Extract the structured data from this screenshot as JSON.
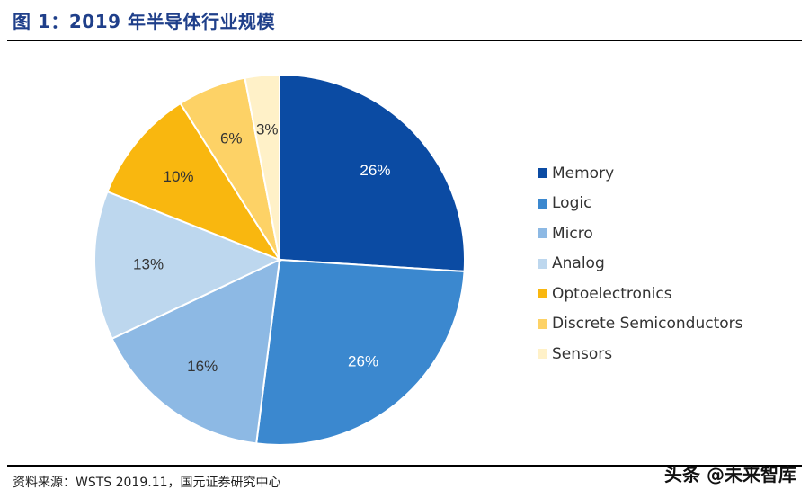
{
  "page": {
    "title": "图 1：2019 年半导体行业规模",
    "source": "资料来源：WSTS 2019.11，国元证券研究中心",
    "watermark": "头条 @未来智库"
  },
  "chart_data": {
    "type": "pie",
    "title": "",
    "legend_position": "right",
    "categories": [
      "Memory",
      "Logic",
      "Micro",
      "Analog",
      "Optoelectronics",
      "Discrete Semiconductors",
      "Sensors"
    ],
    "values": [
      26,
      26,
      16,
      13,
      10,
      6,
      3
    ],
    "labels": [
      "26%",
      "26%",
      "16%",
      "13%",
      "10%",
      "6%",
      "3%"
    ],
    "colors": [
      "#0b4ba3",
      "#3b88cf",
      "#8db9e4",
      "#bdd7ee",
      "#f9b70f",
      "#fdd266",
      "#fff1c8"
    ],
    "label_colors": [
      "#ffffff",
      "#ffffff",
      "#333333",
      "#333333",
      "#333333",
      "#333333",
      "#333333"
    ]
  }
}
